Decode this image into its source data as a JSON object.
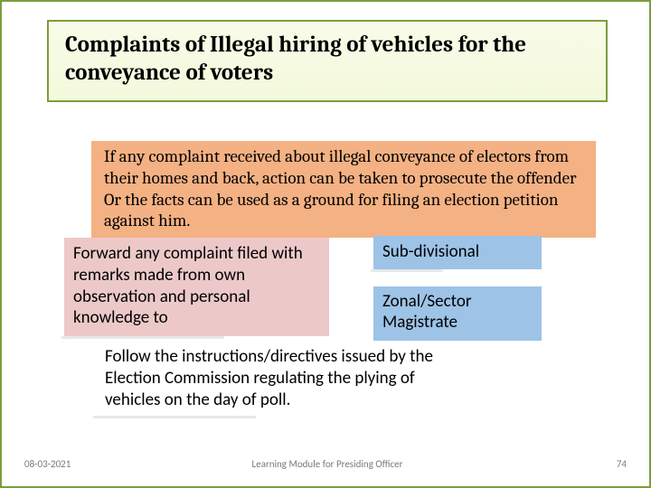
{
  "title": "Complaints of Illegal hiring of vehicles for the conveyance of voters",
  "orange_text": "If any complaint received about illegal conveyance of electors from their homes and back, action can be taken to prosecute the offender Or the facts can be used as a ground for filing an election petition against him.",
  "pink_text": "Forward any complaint filed with remarks made from own observation and personal knowledge to",
  "blue1_text": "Sub-divisional",
  "blue2_text": "Zonal/Sector Magistrate",
  "white_text": "Follow the instructions/directives issued by the Election Commission regulating the plying of vehicles on the day of poll.",
  "footer": {
    "date": "08-03-2021",
    "center": "Learning Module for Presiding Officer",
    "page": "74"
  },
  "colors": {
    "border_green": "#7a9e3b",
    "title_bg_top": "#f8fce8",
    "title_bg_bottom": "#f3f9dc",
    "orange": "#f4b183",
    "pink": "#ecc9c8",
    "blue": "#9dc3e6",
    "shadow": "#e8e8e8",
    "footer_text": "#7a7a7a"
  },
  "title_fontsize": 25,
  "body_fontsize": 19,
  "footer_fontsize": 11
}
